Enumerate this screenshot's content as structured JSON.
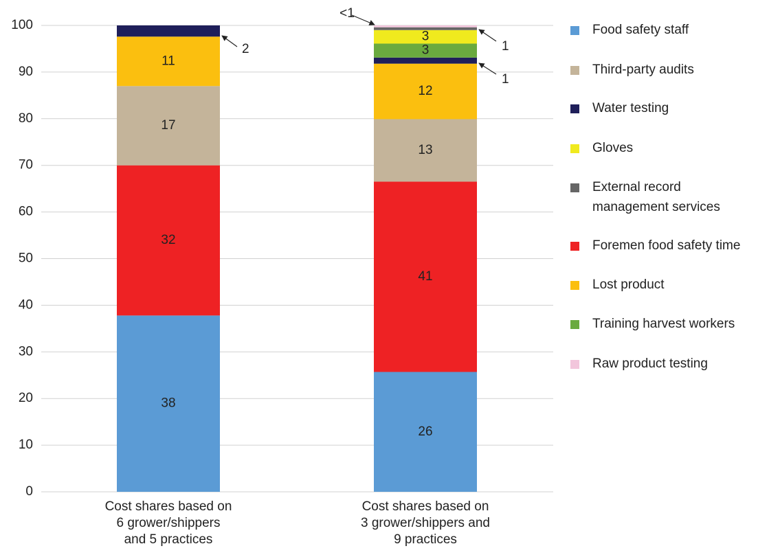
{
  "chart_data": {
    "type": "stacked-bar",
    "categories": [
      "Cost shares based on\n6 grower/shippers\nand 5 practices",
      "Cost shares based on\n3 grower/shippers and\n9 practices"
    ],
    "ylim": [
      0,
      100
    ],
    "yticks": [
      0,
      10,
      20,
      30,
      40,
      50,
      60,
      70,
      80,
      90,
      100
    ],
    "grid": true,
    "legend": "right",
    "series": [
      {
        "name": "Food safety staff",
        "color": "#5b9bd5",
        "values": [
          37.8,
          25.7
        ],
        "value_labels": [
          "38",
          "26"
        ]
      },
      {
        "name": "Third-party audits",
        "color": "#c4b49a",
        "values": [
          17.0,
          13.4
        ],
        "value_labels": [
          "17",
          "13"
        ]
      },
      {
        "name": "Water testing",
        "color": "#1f1f5a",
        "values": [
          2.4,
          1.3
        ],
        "value_labels": [
          "2",
          "1"
        ]
      },
      {
        "name": "Gloves",
        "color": "#f0ea1e",
        "values": [
          null,
          2.9
        ],
        "value_labels": [
          null,
          "3"
        ]
      },
      {
        "name": "External record management services",
        "color": "#666666",
        "values": [
          null,
          0.6
        ],
        "value_labels": [
          null,
          "1"
        ]
      },
      {
        "name": "Foremen food safety time",
        "color": "#ee2224",
        "values": [
          32.2,
          40.8
        ],
        "value_labels": [
          "32",
          "41"
        ]
      },
      {
        "name": "Lost product",
        "color": "#fbbf0f",
        "values": [
          10.6,
          11.9
        ],
        "value_labels": [
          "11",
          "12"
        ]
      },
      {
        "name": "Training harvest workers",
        "color": "#6aaa3f",
        "values": [
          null,
          3.0
        ],
        "value_labels": [
          null,
          "3"
        ]
      },
      {
        "name": "Raw product testing",
        "color": "#f2c6dc",
        "values": [
          null,
          0.4
        ],
        "value_labels": [
          null,
          "<1"
        ]
      }
    ]
  }
}
